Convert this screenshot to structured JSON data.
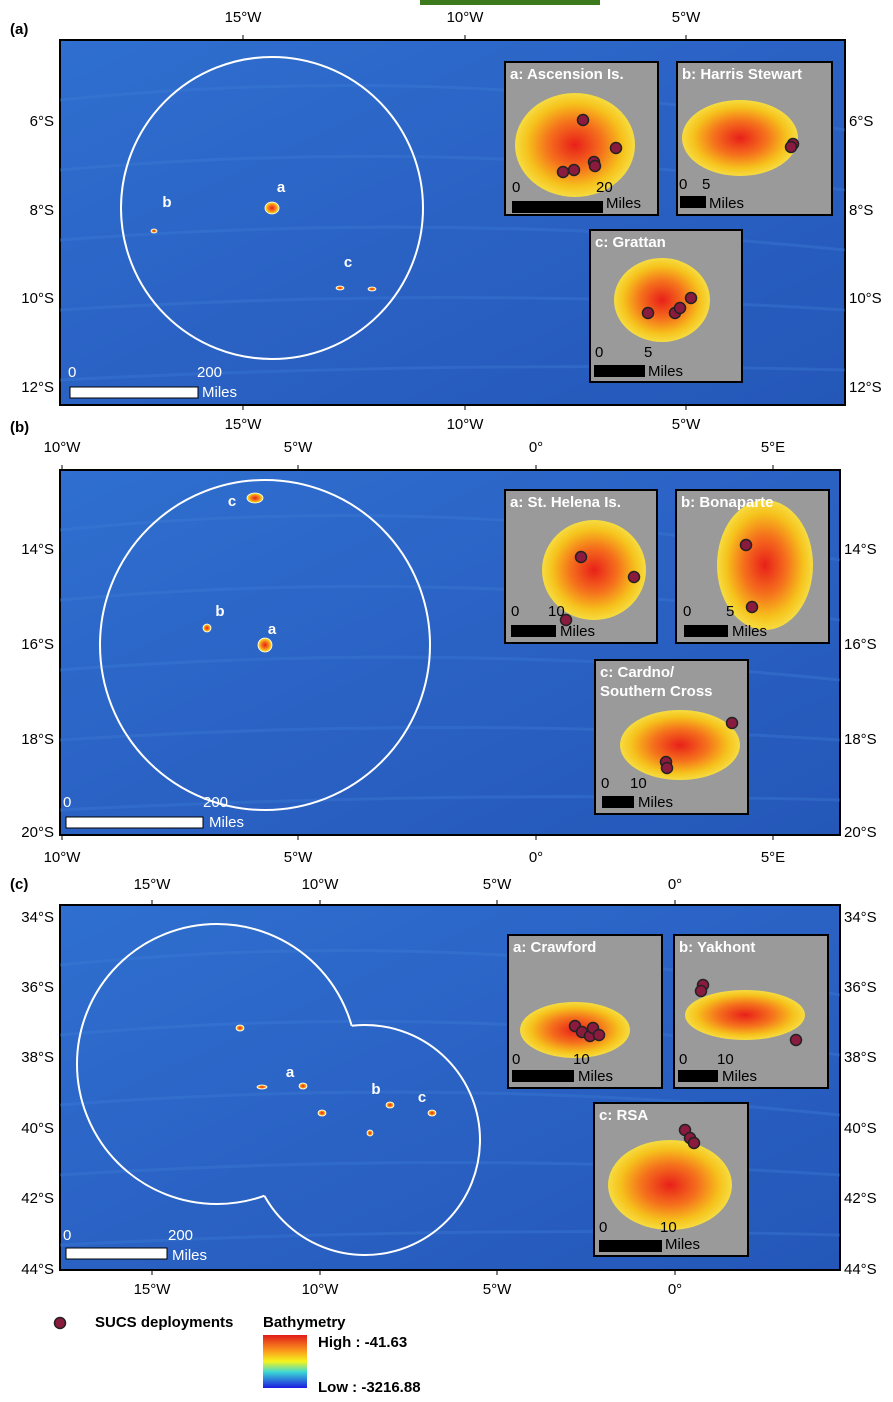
{
  "panels": [
    {
      "label": "(a)",
      "lon_ticks": [
        "15°W",
        "10°W",
        "5°W"
      ],
      "lat_ticks": [
        "6°S",
        "8°S",
        "10°S",
        "12°S"
      ],
      "sites": [
        "a",
        "b",
        "c"
      ],
      "scale": [
        "0",
        "200",
        "Miles"
      ],
      "insets": [
        {
          "title": [
            "a: Ascension Is."
          ],
          "scale": [
            "0",
            "20",
            "Miles"
          ]
        },
        {
          "title": [
            "b: Harris Stewart"
          ],
          "scale": [
            "0",
            "5",
            "Miles"
          ]
        },
        {
          "title": [
            "c: Grattan"
          ],
          "scale": [
            "0",
            "5",
            "Miles"
          ]
        }
      ]
    },
    {
      "label": "(b)",
      "lon_ticks": [
        "10°W",
        "5°W",
        "0°",
        "5°E"
      ],
      "lat_ticks": [
        "14°S",
        "16°S",
        "18°S",
        "20°S"
      ],
      "sites": [
        "a",
        "b",
        "c"
      ],
      "scale": [
        "0",
        "200",
        "Miles"
      ],
      "insets": [
        {
          "title": [
            "a: St. Helena Is."
          ],
          "scale": [
            "0",
            "10",
            "Miles"
          ]
        },
        {
          "title": [
            "b: Bonaparte"
          ],
          "scale": [
            "0",
            "5",
            "Miles"
          ]
        },
        {
          "title": [
            "c: Cardno/",
            "Southern Cross"
          ],
          "scale": [
            "0",
            "10",
            "Miles"
          ]
        }
      ]
    },
    {
      "label": "(c)",
      "lon_ticks": [
        "15°W",
        "10°W",
        "5°W",
        "0°"
      ],
      "lat_ticks": [
        "34°S",
        "36°S",
        "38°S",
        "40°S",
        "42°S",
        "44°S"
      ],
      "sites": [
        "a",
        "b",
        "c"
      ],
      "scale": [
        "0",
        "200",
        "Miles"
      ],
      "insets": [
        {
          "title": [
            "a: Crawford"
          ],
          "scale": [
            "0",
            "10",
            "Miles"
          ]
        },
        {
          "title": [
            "b: Yakhont"
          ],
          "scale": [
            "0",
            "10",
            "Miles"
          ]
        },
        {
          "title": [
            "c: RSA"
          ],
          "scale": [
            "0",
            "10",
            "Miles"
          ]
        }
      ]
    }
  ],
  "legend": {
    "deployments": "SUCS deployments",
    "bathymetry": "Bathymetry",
    "high": "High : -41.63",
    "low": "Low : -3216.88"
  }
}
